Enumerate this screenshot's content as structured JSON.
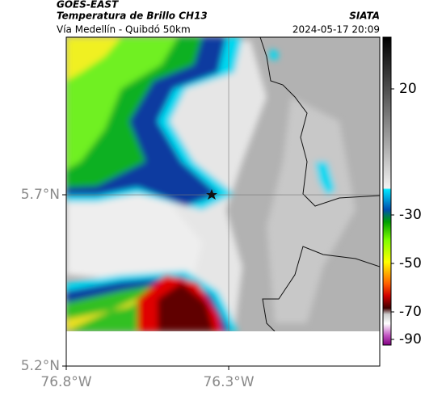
{
  "header": {
    "product": "GOES-EAST",
    "title": "Temperatura de Brillo CH13",
    "subtitle": "Vía Medellín - Quibdó 50km",
    "source": "SIATA",
    "datetime": "2024-05-17 20:09"
  },
  "map": {
    "xlim": [
      -76.8,
      -75.835
    ],
    "ylim": [
      5.2,
      6.16
    ],
    "xticks": [
      {
        "value": -76.8,
        "label": "76.8°W"
      },
      {
        "value": -76.3,
        "label": "76.3°W"
      }
    ],
    "yticks": [
      {
        "value": 5.7,
        "label": "5.7°N"
      },
      {
        "value": 5.2,
        "label": "5.2°N"
      }
    ],
    "grid": true
  },
  "colorbar": {
    "ticks": [
      20,
      -30,
      -50,
      -70,
      -90
    ]
  }
}
